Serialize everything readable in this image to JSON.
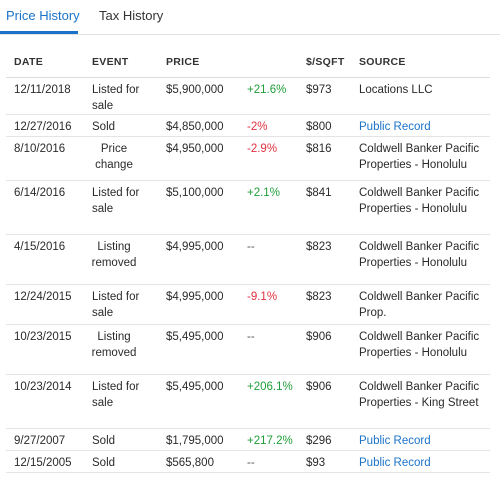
{
  "tabs": [
    {
      "label": "Price History",
      "active": true
    },
    {
      "label": "Tax History",
      "active": false
    }
  ],
  "columns": {
    "date": "DATE",
    "event": "EVENT",
    "price": "PRICE",
    "sqft": "$/SQFT",
    "source": "SOURCE"
  },
  "colors": {
    "accent": "#1a73c8",
    "positive": "#1f9e3a",
    "negative": "#e0313f"
  },
  "rows": [
    {
      "date": "12/11/2018",
      "event": "Listed for sale",
      "price": "$5,900,000",
      "change": "+21.6%",
      "change_type": "pos",
      "sqft": "$973",
      "source": "Locations LLC",
      "source_link": false
    },
    {
      "date": "12/27/2016",
      "event": "Sold",
      "price": "$4,850,000",
      "change": "-2%",
      "change_type": "neg",
      "sqft": "$800",
      "source": "Public Record",
      "source_link": true
    },
    {
      "date": "8/10/2016",
      "event": "Price change",
      "price": "$4,950,000",
      "change": "-2.9%",
      "change_type": "neg",
      "sqft": "$816",
      "source": "Coldwell Banker Pacific Properties - Honolulu",
      "source_link": false
    },
    {
      "date": "6/14/2016",
      "event": "Listed for sale",
      "price": "$5,100,000",
      "change": "+2.1%",
      "change_type": "pos",
      "sqft": "$841",
      "source": "Coldwell Banker Pacific Properties - Honolulu",
      "source_link": false
    },
    {
      "date": "4/15/2016",
      "event": "Listing removed",
      "price": "$4,995,000",
      "change": "--",
      "change_type": "neutral",
      "sqft": "$823",
      "source": "Coldwell Banker Pacific Properties - Honolulu",
      "source_link": false
    },
    {
      "date": "12/24/2015",
      "event": "Listed for sale",
      "price": "$4,995,000",
      "change": "-9.1%",
      "change_type": "neg",
      "sqft": "$823",
      "source": "Coldwell Banker Pacific Prop.",
      "source_link": false
    },
    {
      "date": "10/23/2015",
      "event": "Listing removed",
      "price": "$5,495,000",
      "change": "--",
      "change_type": "neutral",
      "sqft": "$906",
      "source": "Coldwell Banker Pacific Properties - Honolulu",
      "source_link": false
    },
    {
      "date": "10/23/2014",
      "event": "Listed for sale",
      "price": "$5,495,000",
      "change": "+206.1%",
      "change_type": "pos",
      "sqft": "$906",
      "source": "Coldwell Banker Pacific Properties - King Street",
      "source_link": false
    },
    {
      "date": "9/27/2007",
      "event": "Sold",
      "price": "$1,795,000",
      "change": "+217.2%",
      "change_type": "pos",
      "sqft": "$296",
      "source": "Public Record",
      "source_link": true
    },
    {
      "date": "12/15/2005",
      "event": "Sold",
      "price": "$565,800",
      "change": "--",
      "change_type": "neutral",
      "sqft": "$93",
      "source": "Public Record",
      "source_link": true
    }
  ]
}
